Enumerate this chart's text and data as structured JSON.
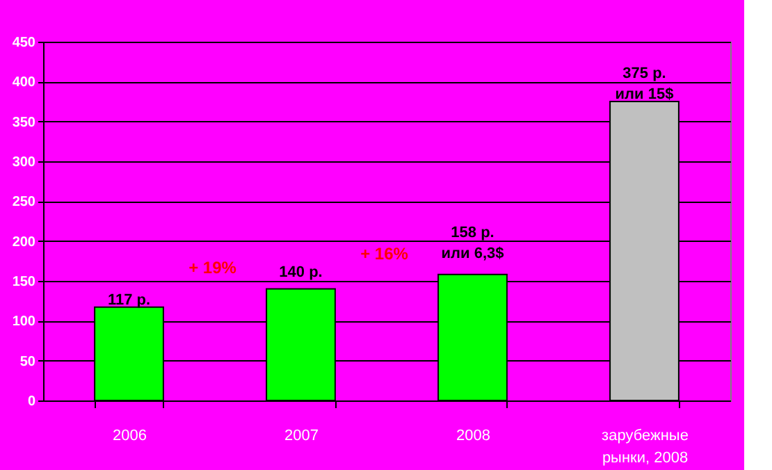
{
  "chart_data": {
    "type": "bar",
    "categories": [
      "2006",
      "2007",
      "2008",
      "зарубежные\nрынки, 2008"
    ],
    "values": [
      117,
      140,
      158,
      375
    ],
    "colors": [
      "#00ff00",
      "#00ff00",
      "#00ff00",
      "#c0c0c0"
    ],
    "value_labels": [
      "117 р.",
      "140 р.",
      "158 р.\nили 6,3$",
      "375 р.\nили 15$"
    ],
    "annotations": [
      "+ 19%",
      "+ 16%"
    ],
    "ylim": [
      0,
      450
    ],
    "yticks": [
      0,
      50,
      100,
      150,
      200,
      250,
      300,
      350,
      400,
      450
    ],
    "grid": "y",
    "legend": false
  }
}
